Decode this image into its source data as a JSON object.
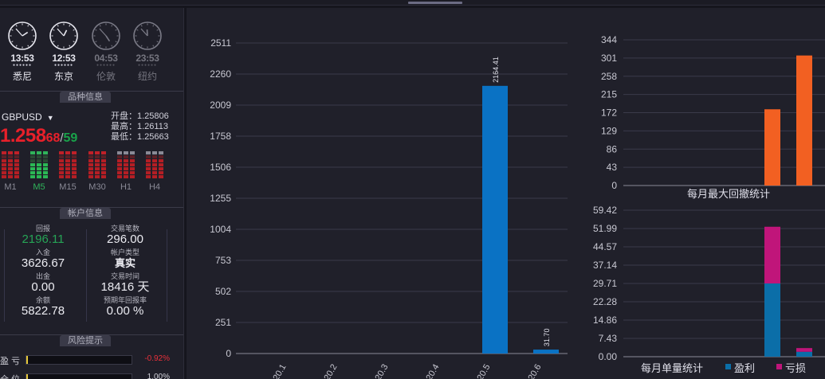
{
  "clocks": [
    {
      "time": "13:53",
      "city": "悉尼",
      "active": true,
      "hour": 1,
      "minute": 53
    },
    {
      "time": "12:53",
      "city": "东京",
      "active": true,
      "hour": 12,
      "minute": 53
    },
    {
      "time": "04:53",
      "city": "伦敦",
      "active": false,
      "hour": 4,
      "minute": 53
    },
    {
      "time": "23:53",
      "city": "纽约",
      "active": false,
      "hour": 11,
      "minute": 53
    }
  ],
  "sections": {
    "symbol_info": "品种信息",
    "account_info": "帐户信息",
    "risk": "风险提示"
  },
  "symbol": {
    "name": "GBPUSD",
    "price_main": "1.258",
    "price_pip": "68",
    "price_sep": "/",
    "price_pip2": "59",
    "open": "开盘：1.25806",
    "high": "最高：1.26113",
    "low": "最低：1.25663"
  },
  "timeframes": [
    {
      "label": "M1",
      "active": false
    },
    {
      "label": "M5",
      "active": true
    },
    {
      "label": "M15",
      "active": false
    },
    {
      "label": "M30",
      "active": false
    },
    {
      "label": "H1",
      "active": false
    },
    {
      "label": "H4",
      "active": false
    }
  ],
  "account": {
    "return_label": "回报",
    "return_value": "2196.11",
    "trades_label": "交易笔数",
    "trades_value": "296.00",
    "deposit_label": "入金",
    "deposit_value": "3626.67",
    "type_label": "帐户类型",
    "type_value": "真实",
    "withdraw_label": "出金",
    "withdraw_value": "0.00",
    "time_label": "交易时间",
    "time_value": "18416 天",
    "balance_label": "余额",
    "balance_value": "5822.78",
    "annual_label": "预期年回报率",
    "annual_value": "0.00 %"
  },
  "risk": [
    {
      "label": "盈 亏",
      "value": "-0.92%"
    },
    {
      "label": "仓 位",
      "value": "1.00%"
    }
  ],
  "colors": {
    "blue": "#0a72c4",
    "orange": "#f26022",
    "magenta": "#c0157a",
    "teal": "#0b6ea8",
    "red": "#e8202a",
    "green": "#19a24a"
  },
  "chart_data": [
    {
      "type": "bar",
      "categories": [
        "2020.1",
        "2020.2",
        "2020.3",
        "2020.4",
        "2020.5",
        "2020.6"
      ],
      "values": [
        0,
        0,
        0,
        0,
        2164.41,
        31.7
      ],
      "value_labels": [
        "",
        "",
        "",
        "",
        "2164.41",
        "31.70"
      ],
      "yticks": [
        "0",
        "251",
        "502",
        "753",
        "1004",
        "1255",
        "1506",
        "1758",
        "2009",
        "2260",
        "2511"
      ],
      "ylim": [
        0,
        2511
      ]
    },
    {
      "type": "bar",
      "title": "每月最大回撤统计",
      "values": [
        0,
        0,
        0,
        0,
        180,
        307
      ],
      "yticks": [
        "0",
        "43",
        "86",
        "129",
        "172",
        "215",
        "258",
        "301",
        "344"
      ],
      "ylim": [
        0,
        344
      ]
    },
    {
      "type": "bar",
      "title": "每月单量统计",
      "stacked": true,
      "series": [
        {
          "name": "盈利",
          "values": [
            0,
            0,
            0,
            0,
            29.71,
            2.0
          ]
        },
        {
          "name": "亏损",
          "values": [
            0,
            0,
            0,
            0,
            23.0,
            1.5
          ]
        }
      ],
      "yticks": [
        "0.00",
        "7.43",
        "14.86",
        "22.28",
        "29.71",
        "37.14",
        "44.57",
        "51.99",
        "59.42"
      ],
      "ylim": [
        0,
        59.42
      ]
    }
  ]
}
